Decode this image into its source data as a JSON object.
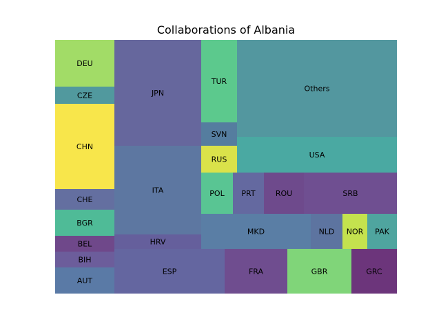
{
  "chart_data": {
    "type": "treemap",
    "title": "Collaborations of Albania",
    "cells": [
      {
        "label": "DEU",
        "color": "#a2dc67"
      },
      {
        "label": "CZE",
        "color": "#51999e"
      },
      {
        "label": "CHN",
        "color": "#f8e64b"
      },
      {
        "label": "CHE",
        "color": "#646fa0"
      },
      {
        "label": "BGR",
        "color": "#4fbb97"
      },
      {
        "label": "BEL",
        "color": "#6f488a"
      },
      {
        "label": "BIH",
        "color": "#6c5d9b"
      },
      {
        "label": "AUT",
        "color": "#5a7aa6"
      },
      {
        "label": "JPN",
        "color": "#66679d"
      },
      {
        "label": "ITA",
        "color": "#5d77a1"
      },
      {
        "label": "HRV",
        "color": "#655f9c"
      },
      {
        "label": "ESP",
        "color": "#6466a0"
      },
      {
        "label": "TUR",
        "color": "#5cc98d"
      },
      {
        "label": "SVN",
        "color": "#557d9f"
      },
      {
        "label": "RUS",
        "color": "#dae24a"
      },
      {
        "label": "Others",
        "color": "#53979f"
      },
      {
        "label": "USA",
        "color": "#4aa9a2"
      },
      {
        "label": "POL",
        "color": "#59c593"
      },
      {
        "label": "PRT",
        "color": "#6469a0"
      },
      {
        "label": "ROU",
        "color": "#6e4a8c"
      },
      {
        "label": "SRB",
        "color": "#6f4f91"
      },
      {
        "label": "MKD",
        "color": "#5a7ea5"
      },
      {
        "label": "NLD",
        "color": "#5d74a0"
      },
      {
        "label": "NOR",
        "color": "#c4e24e"
      },
      {
        "label": "PAK",
        "color": "#4fa59f"
      },
      {
        "label": "FRA",
        "color": "#6f4d8f"
      },
      {
        "label": "GBR",
        "color": "#80d579"
      },
      {
        "label": "GRC",
        "color": "#6c357b"
      }
    ]
  }
}
